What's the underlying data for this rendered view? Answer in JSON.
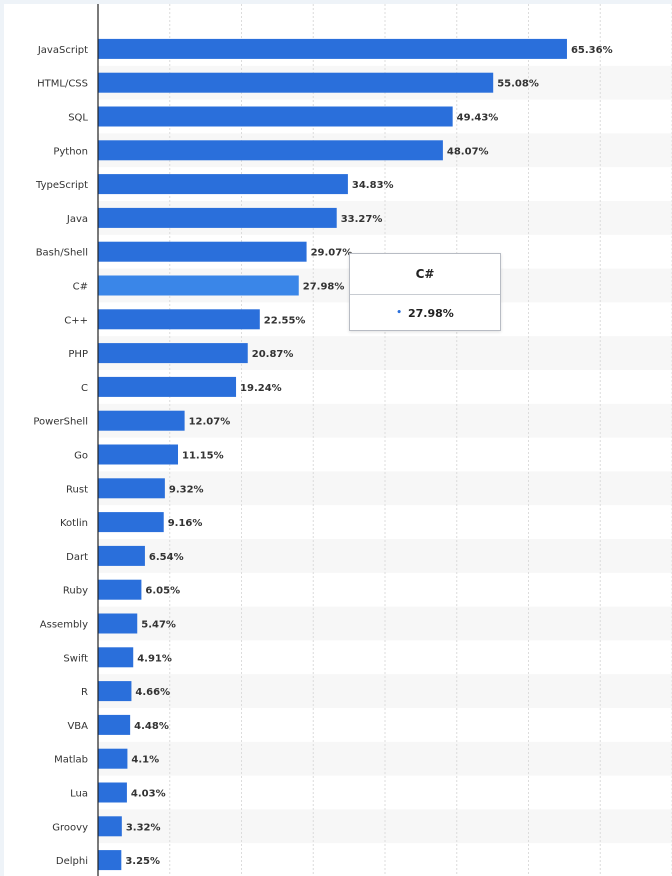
{
  "chart_data": {
    "type": "bar",
    "orientation": "horizontal",
    "categories": [
      "JavaScript",
      "HTML/CSS",
      "SQL",
      "Python",
      "TypeScript",
      "Java",
      "Bash/Shell",
      "C#",
      "C++",
      "PHP",
      "C",
      "PowerShell",
      "Go",
      "Rust",
      "Kotlin",
      "Dart",
      "Ruby",
      "Assembly",
      "Swift",
      "R",
      "VBA",
      "Matlab",
      "Lua",
      "Groovy",
      "Delphi"
    ],
    "values": [
      65.36,
      55.08,
      49.43,
      48.07,
      34.83,
      33.27,
      29.07,
      27.98,
      22.55,
      20.87,
      19.24,
      12.07,
      11.15,
      9.32,
      9.16,
      6.54,
      6.05,
      5.47,
      4.91,
      4.66,
      4.48,
      4.1,
      4.03,
      3.32,
      3.25
    ],
    "value_labels": [
      "65.36%",
      "55.08%",
      "49.43%",
      "48.07%",
      "34.83%",
      "33.27%",
      "29.07%",
      "27.98%",
      "22.55%",
      "20.87%",
      "19.24%",
      "12.07%",
      "11.15%",
      "9.32%",
      "9.16%",
      "6.54%",
      "6.05%",
      "5.47%",
      "4.91%",
      "4.66%",
      "4.48%",
      "4.1%",
      "4.03%",
      "3.32%",
      "3.25%"
    ],
    "xlim": [
      0,
      80
    ],
    "grid": true,
    "highlighted_category": "C#",
    "colors": {
      "bar": "#2a6fdb",
      "bar_highlight": "#3a86e8",
      "band": "#f7f7f7",
      "grid": "#dcdcdc",
      "axis": "#222222"
    }
  },
  "tooltip": {
    "title": "C#",
    "value": "27.98%",
    "marker": "•"
  }
}
